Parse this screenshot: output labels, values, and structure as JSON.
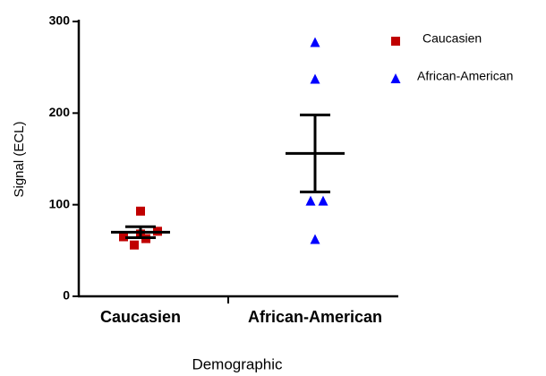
{
  "chart_data": {
    "type": "scatter",
    "categories": [
      "Caucasien",
      "African-American"
    ],
    "xlabel": "Demographic",
    "ylabel": "Signal (ECL)",
    "ylim": [
      0,
      300
    ],
    "yticks": [
      0,
      100,
      200,
      300
    ],
    "legend": "upper right",
    "series": [
      {
        "name": "Caucasien",
        "color": "#c00000",
        "marker": "square",
        "values": [
          93,
          65,
          56,
          63,
          71,
          68
        ],
        "mean": 70,
        "error": 6
      },
      {
        "name": "African-American",
        "color": "#0000ff",
        "marker": "triangle",
        "values": [
          277,
          237,
          104,
          104,
          62
        ],
        "mean": 156,
        "error": 42
      }
    ]
  }
}
